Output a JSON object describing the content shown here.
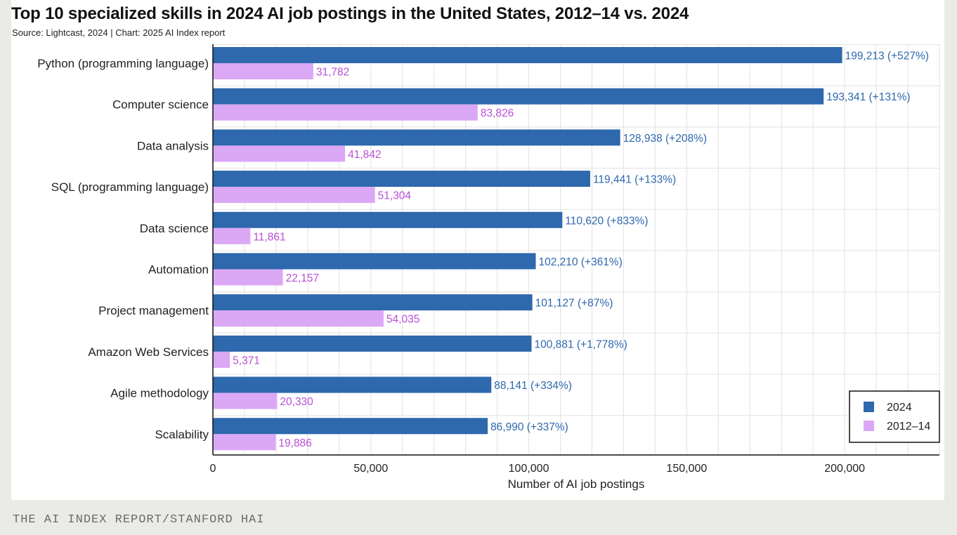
{
  "title": "Top 10 specialized skills in 2024 AI job postings in the United States, 2012–14 vs. 2024",
  "subtitle": "Source: Lightcast, 2024 | Chart: 2025 AI Index report",
  "footer": "THE AI INDEX REPORT/STANFORD HAI",
  "colors": {
    "series_2024": "#2e68ad",
    "series_2012": "#dba8f6",
    "label_2024": "#2e68ad",
    "label_2012": "#b94fd6",
    "grid": "#e2e2e2",
    "text": "#222222"
  },
  "chart_data": {
    "type": "bar",
    "orientation": "horizontal",
    "title": "Top 10 specialized skills in 2024 AI job postings in the United States, 2012–14 vs. 2024",
    "xlabel": "Number of AI job postings",
    "ylabel": "",
    "xlim": [
      0,
      230000
    ],
    "xticks": [
      0,
      50000,
      100000,
      150000,
      200000
    ],
    "xtick_labels": [
      "0",
      "50,000",
      "100,000",
      "150,000",
      "200,000"
    ],
    "grid": "vertical",
    "legend_position": "bottom-right",
    "categories": [
      "Python (programming language)",
      "Computer science",
      "Data analysis",
      "SQL (programming language)",
      "Data science",
      "Automation",
      "Project management",
      "Amazon Web Services",
      "Agile methodology",
      "Scalability"
    ],
    "series": [
      {
        "name": "2024",
        "values": [
          199213,
          193341,
          128938,
          119441,
          110620,
          102210,
          101127,
          100881,
          88141,
          86990
        ],
        "labels": [
          "199,213 (+527%)",
          "193,341 (+131%)",
          "128,938 (+208%)",
          "119,441 (+133%)",
          "110,620 (+833%)",
          "102,210 (+361%)",
          "101,127 (+87%)",
          "100,881 (+1,778%)",
          "88,141 (+334%)",
          "86,990 (+337%)"
        ]
      },
      {
        "name": "2012–14",
        "values": [
          31782,
          83826,
          41842,
          51304,
          11861,
          22157,
          54035,
          5371,
          20330,
          19886
        ],
        "labels": [
          "31,782",
          "83,826",
          "41,842",
          "51,304",
          "11,861",
          "22,157",
          "54,035",
          "5,371",
          "20,330",
          "19,886"
        ]
      }
    ]
  }
}
